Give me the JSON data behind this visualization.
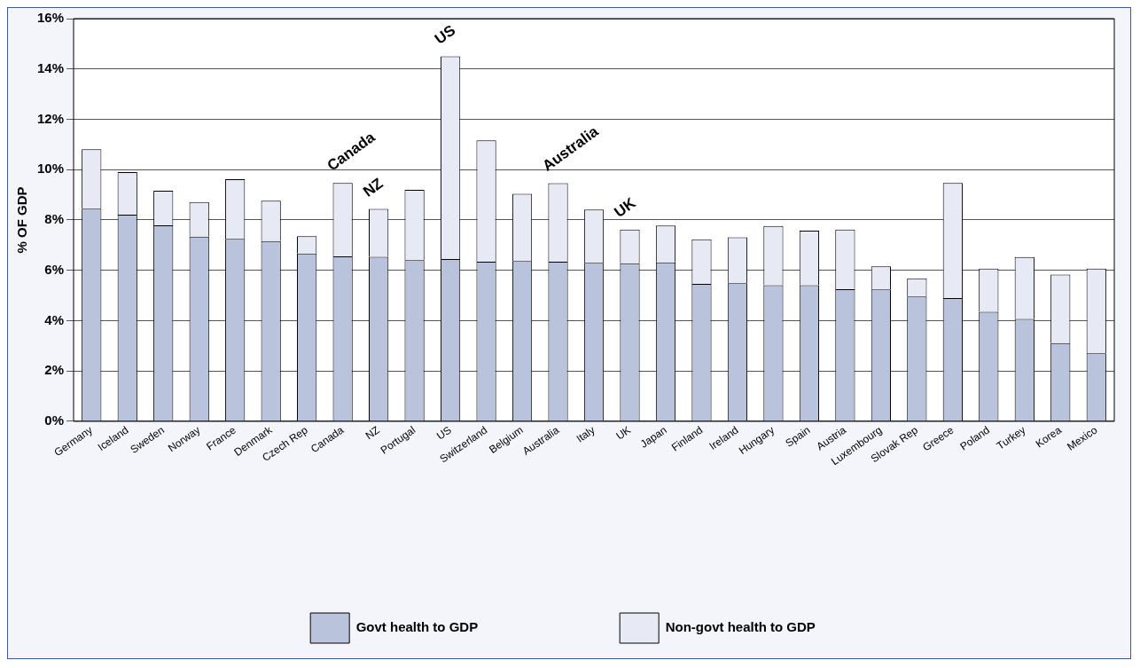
{
  "chart_data": {
    "type": "bar",
    "ylabel": "% OF GDP",
    "categories": [
      "Germany",
      "Iceland",
      "Sweden",
      "Norway",
      "France",
      "Denmark",
      "Czech Rep",
      "Canada",
      "NZ",
      "Portugal",
      "US",
      "Switzerland",
      "Belgium",
      "Australia",
      "Italy",
      "UK",
      "Japan",
      "Finland",
      "Ireland",
      "Hungary",
      "Spain",
      "Austria",
      "Luxembourg",
      "Slovak Rep",
      "Greece",
      "Poland",
      "Turkey",
      "Korea",
      "Mexico"
    ],
    "stacked": true,
    "series": [
      {
        "name": "Govt health to GDP",
        "color": "#b9c3dc",
        "values": [
          8.45,
          8.21,
          7.79,
          7.34,
          7.25,
          7.16,
          6.67,
          6.55,
          6.54,
          6.4,
          6.45,
          6.34,
          6.37,
          6.34,
          6.3,
          6.28,
          6.32,
          5.46,
          5.49,
          5.41,
          5.41,
          5.25,
          5.24,
          4.96,
          4.9,
          4.35,
          4.07,
          3.11,
          2.7
        ]
      },
      {
        "name": "Non-govt health to GDP",
        "color": "#e7eaf4",
        "values": [
          2.36,
          1.69,
          1.37,
          1.37,
          2.37,
          1.61,
          0.69,
          2.92,
          1.9,
          2.8,
          8.05,
          4.82,
          2.67,
          3.12,
          2.11,
          1.34,
          1.46,
          1.77,
          1.82,
          2.35,
          2.17,
          2.37,
          0.92,
          0.72,
          4.57,
          1.72,
          2.46,
          2.72,
          3.37
        ]
      }
    ],
    "ylim": [
      0,
      16
    ],
    "yticks": [
      {
        "value": 0,
        "label": "0%"
      },
      {
        "value": 2,
        "label": "2%"
      },
      {
        "value": 4,
        "label": "4%"
      },
      {
        "value": 6,
        "label": "6%"
      },
      {
        "value": 8,
        "label": "8%"
      },
      {
        "value": 10,
        "label": "10%"
      },
      {
        "value": 12,
        "label": "12%"
      },
      {
        "value": 14,
        "label": "14%"
      },
      {
        "value": 16,
        "label": "16%"
      }
    ],
    "grid": "y",
    "legend": "bottom",
    "annotations": [
      {
        "text": "Canada",
        "x": "Canada",
        "y": 9.47
      },
      {
        "text": "NZ",
        "x": "NZ",
        "y": 8.44
      },
      {
        "text": "US",
        "x": "US",
        "y": 14.5
      },
      {
        "text": "Australia",
        "x": "Australia",
        "y": 9.46
      },
      {
        "text": "UK",
        "x": "UK",
        "y": 7.62
      }
    ]
  }
}
